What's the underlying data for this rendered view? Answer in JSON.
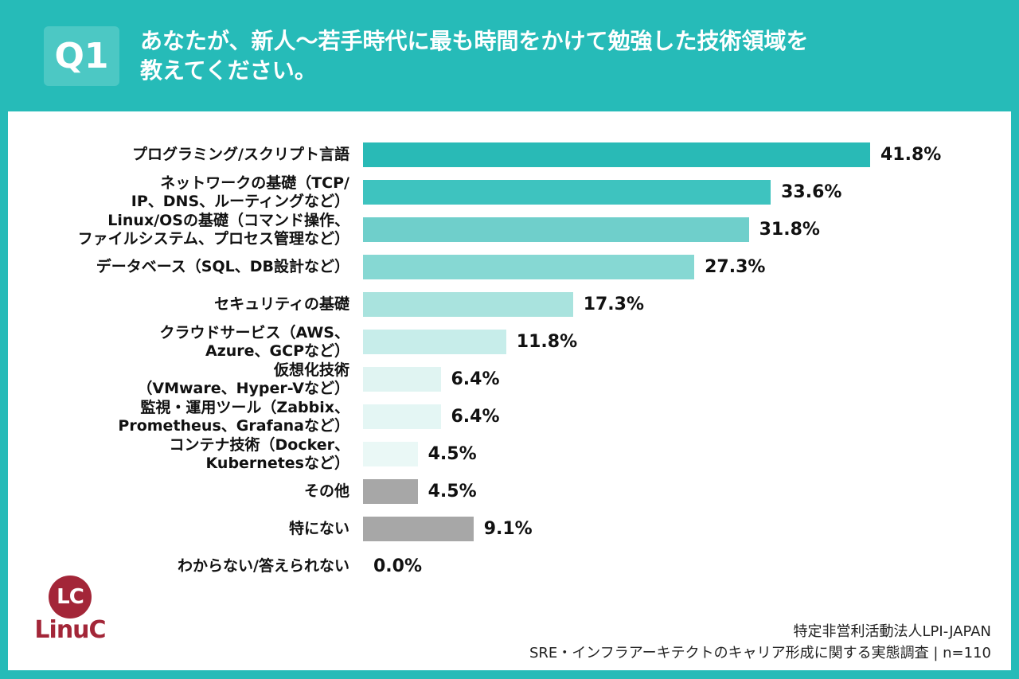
{
  "header": {
    "badge": "Q1",
    "question_line1": "あなたが、新人〜若手時代に最も時間をかけて勉強した技術領域を",
    "question_line2": "教えてください。"
  },
  "colors": {
    "background_teal": "#26BBB8",
    "badge_teal": "#4CC8C4",
    "bar_gray": "#A7A7A7",
    "logo_red": "#A32638"
  },
  "chart_data": {
    "type": "bar",
    "orientation": "horizontal",
    "unit": "%",
    "xlim": [
      0,
      45
    ],
    "grid": false,
    "legend": false,
    "items": [
      {
        "label": "プログラミング/スクリプト言語",
        "value": 41.8,
        "value_label": "41.8%",
        "color": "#29BAB6"
      },
      {
        "label": "ネットワークの基礎（TCP/\nIP、DNS、ルーティングなど）",
        "value": 33.6,
        "value_label": "33.6%",
        "color": "#3EC3BF"
      },
      {
        "label": "Linux/OSの基礎（コマンド操作、\nファイルシステム、プロセス管理など）",
        "value": 31.8,
        "value_label": "31.8%",
        "color": "#6FCFCB"
      },
      {
        "label": "データベース（SQL、DB設計など）",
        "value": 27.3,
        "value_label": "27.3%",
        "color": "#86D8D3"
      },
      {
        "label": "セキュリティの基礎",
        "value": 17.3,
        "value_label": "17.3%",
        "color": "#A9E3DE"
      },
      {
        "label": "クラウドサービス（AWS、\nAzure、GCPなど）",
        "value": 11.8,
        "value_label": "11.8%",
        "color": "#C7EDEA"
      },
      {
        "label": "仮想化技術\n（VMware、Hyper-Vなど）",
        "value": 6.4,
        "value_label": "6.4%",
        "color": "#E0F4F2"
      },
      {
        "label": "監視・運用ツール（Zabbix、\nPrometheus、Grafanaなど）",
        "value": 6.4,
        "value_label": "6.4%",
        "color": "#E4F6F4"
      },
      {
        "label": "コンテナ技術（Docker、\nKubernetesなど）",
        "value": 4.5,
        "value_label": "4.5%",
        "color": "#EAF8F6"
      },
      {
        "label": "その他",
        "value": 4.5,
        "value_label": "4.5%",
        "color": "#A7A7A7"
      },
      {
        "label": "特にない",
        "value": 9.1,
        "value_label": "9.1%",
        "color": "#A7A7A7"
      },
      {
        "label": "わからない/答えられない",
        "value": 0.0,
        "value_label": "0.0%",
        "color": null
      }
    ]
  },
  "logo": {
    "monogram": "LC",
    "wordmark": "LinuC"
  },
  "footer": {
    "line1": "特定非営利活動法人LPI-JAPAN",
    "line2": "SRE・インフラアーキテクトのキャリア形成に関する実態調査 | n=110"
  }
}
